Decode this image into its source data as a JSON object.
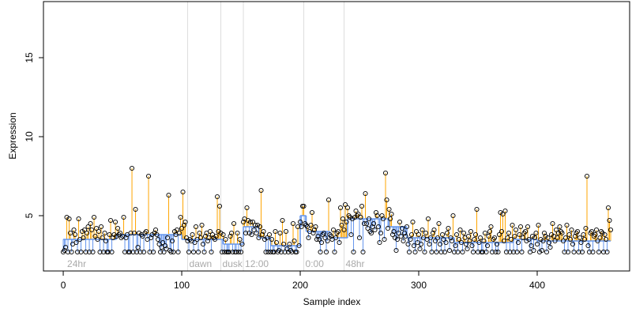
{
  "chart_data": {
    "type": "stem-scatter",
    "xlabel": "Sample index",
    "ylabel": "Expression",
    "xlim": [
      -16.7,
      478
    ],
    "xticks": [
      0,
      100,
      200,
      300,
      400
    ],
    "ylim": [
      1.5,
      18.55
    ],
    "yticks": [
      5,
      10,
      15
    ],
    "above_color": "#ffa500",
    "below_color": "#6495ed",
    "fit_color": "#6495ed",
    "annotations": [
      {
        "label": "24hr",
        "x": 2,
        "line": false
      },
      {
        "label": "dawn",
        "x": 105,
        "line": true
      },
      {
        "label": "dusk",
        "x": 133,
        "line": true
      },
      {
        "label": "12:00",
        "x": 152,
        "line": true
      },
      {
        "label": "0:00",
        "x": 203,
        "line": true
      },
      {
        "label": "48hr",
        "x": 237,
        "line": true
      }
    ],
    "fit": [
      {
        "x": [
          0,
          45
        ],
        "value": 3.5
      },
      {
        "x": [
          45,
          100
        ],
        "value": 3.8
      },
      {
        "x": [
          100,
          135
        ],
        "value": 3.5
      },
      {
        "x": [
          135,
          152
        ],
        "value": 3.2
      },
      {
        "x": [
          152,
          165
        ],
        "value": 4.3
      },
      {
        "x": [
          165,
          175
        ],
        "value": 3.6
      },
      {
        "x": [
          175,
          200
        ],
        "value": 3.1
      },
      {
        "x": [
          200,
          205
        ],
        "value": 5.0
      },
      {
        "x": [
          205,
          225
        ],
        "value": 4.0
      },
      {
        "x": [
          225,
          240
        ],
        "value": 3.6
      },
      {
        "x": [
          240,
          275
        ],
        "value": 4.8
      },
      {
        "x": [
          275,
          290
        ],
        "value": 4.3
      },
      {
        "x": [
          290,
          330
        ],
        "value": 3.6
      },
      {
        "x": [
          330,
          380
        ],
        "value": 3.3
      },
      {
        "x": [
          380,
          400
        ],
        "value": 3.5
      },
      {
        "x": [
          400,
          462
        ],
        "value": 3.4
      }
    ],
    "values": [
      2.7,
      2.8,
      3.0,
      4.9,
      2.7,
      4.8,
      3.9,
      2.7,
      3.2,
      4.1,
      3.8,
      3.3,
      2.7,
      4.8,
      3.5,
      2.7,
      4.0,
      3.6,
      4.1,
      2.7,
      3.9,
      4.3,
      2.7,
      4.5,
      4.1,
      2.7,
      4.9,
      3.7,
      4.2,
      3.5,
      4.0,
      2.7,
      4.3,
      3.6,
      2.7,
      3.9,
      3.4,
      2.7,
      2.7,
      3.8,
      4.7,
      2.7,
      3.6,
      3.8,
      4.6,
      3.7,
      4.2,
      3.8,
      3.9,
      3.6,
      3.7,
      4.9,
      2.7,
      3.6,
      3.8,
      2.7,
      2.7,
      3.9,
      8.0,
      2.7,
      3.9,
      5.4,
      2.7,
      3.0,
      3.9,
      2.7,
      3.8,
      3.7,
      2.7,
      3.9,
      4.0,
      3.5,
      7.5,
      2.7,
      3.6,
      3.8,
      2.7,
      3.9,
      4.1,
      3.8,
      3.5,
      3.2,
      2.7,
      3.0,
      3.3,
      2.7,
      3.1,
      2.9,
      3.6,
      6.3,
      2.8,
      2.7,
      3.4,
      2.7,
      4.0,
      3.8,
      4.1,
      2.7,
      3.9,
      4.9,
      4.2,
      6.5,
      4.4,
      4.6,
      3.6,
      3.4,
      2.7,
      3.5,
      3.4,
      3.8,
      2.7,
      3.3,
      4.3,
      3.5,
      2.7,
      3.9,
      3.6,
      4.4,
      3.2,
      2.7,
      3.7,
      3.9,
      3.4,
      3.6,
      4.0,
      2.7,
      3.8,
      3.6,
      3.5,
      3.7,
      6.2,
      4.0,
      5.6,
      3.9,
      2.7,
      3.8,
      2.7,
      3.5,
      2.7,
      2.7,
      2.7,
      3.7,
      3.9,
      2.7,
      4.5,
      2.7,
      2.7,
      3.9,
      2.7,
      3.5,
      2.7,
      3.2,
      4.6,
      4.8,
      3.9,
      5.5,
      4.7,
      3.9,
      4.6,
      3.8,
      4.6,
      4.1,
      4.4,
      3.9,
      4.4,
      3.6,
      4.3,
      6.6,
      3.8,
      4.0,
      3.5,
      2.7,
      3.6,
      2.7,
      3.8,
      2.7,
      3.5,
      2.7,
      2.7,
      4.0,
      3.3,
      2.7,
      2.8,
      3.9,
      2.7,
      4.7,
      3.2,
      2.7,
      4.0,
      2.9,
      2.7,
      3.2,
      2.8,
      2.7,
      4.5,
      3.4,
      2.7,
      2.7,
      4.3,
      3.1,
      4.6,
      4.3,
      5.6,
      5.6,
      4.5,
      4.4,
      4.3,
      3.6,
      4.0,
      4.4,
      5.2,
      3.9,
      4.1,
      4.3,
      3.5,
      3.7,
      3.5,
      2.7,
      3.3,
      3.8,
      3.9,
      3.6,
      2.7,
      3.4,
      6.0,
      3.8,
      3.7,
      3.5,
      4.1,
      2.7,
      3.6,
      3.9,
      4.0,
      3.3,
      5.5,
      4.4,
      4.8,
      4.1,
      5.7,
      4.6,
      5.5,
      5.0,
      4.9,
      3.8,
      4.8,
      2.7,
      4.9,
      5.3,
      5.0,
      5.1,
      3.6,
      4.9,
      5.6,
      2.7,
      4.5,
      6.4,
      4.5,
      4.2,
      4.8,
      4.0,
      3.9,
      4.3,
      4.5,
      4.1,
      5.2,
      5.0,
      4.3,
      3.3,
      3.9,
      5.0,
      4.8,
      3.5,
      7.7,
      6.0,
      4.2,
      5.4,
      4.8,
      5.1,
      3.8,
      4.0,
      3.6,
      2.8,
      3.5,
      3.9,
      4.6,
      3.7,
      4.2,
      3.4,
      3.9,
      3.7,
      4.3,
      3.2,
      2.7,
      3.5,
      3.8,
      4.6,
      3.1,
      2.7,
      4.0,
      3.3,
      3.8,
      2.9,
      3.2,
      4.1,
      3.6,
      2.7,
      3.9,
      3.5,
      4.8,
      3.2,
      3.6,
      2.7,
      3.9,
      4.1,
      3.4,
      2.7,
      3.6,
      4.5,
      3.2,
      2.7,
      3.8,
      3.5,
      2.7,
      3.3,
      3.9,
      4.2,
      2.8,
      3.6,
      3.4,
      5.0,
      2.7,
      3.1,
      3.8,
      2.7,
      3.5,
      4.1,
      3.3,
      2.7,
      3.9,
      3.6,
      3.2,
      2.9,
      3.7,
      3.4,
      4.0,
      3.1,
      2.7,
      3.5,
      3.8,
      5.4,
      2.7,
      3.3,
      3.6,
      2.7,
      2.7,
      3.4,
      3.9,
      2.7,
      3.1,
      3.7,
      4.0,
      4.3,
      2.7,
      3.5,
      3.6,
      2.7,
      3.2,
      2.7,
      3.8,
      5.2,
      4.0,
      5.1,
      3.4,
      5.3,
      2.7,
      3.6,
      3.9,
      2.7,
      3.5,
      4.4,
      2.7,
      3.7,
      4.1,
      2.7,
      3.3,
      3.8,
      4.3,
      2.7,
      3.6,
      3.9,
      4.0,
      3.4,
      4.3,
      3.5,
      2.7,
      3.1,
      3.7,
      2.8,
      3.6,
      3.9,
      3.2,
      4.4,
      2.7,
      3.5,
      2.8,
      3.4,
      3.9,
      3.7,
      2.7,
      3.6,
      3.3,
      3.0,
      3.8,
      4.5,
      3.7,
      3.4,
      4.1,
      3.6,
      3.9,
      4.3,
      4.0,
      3.9,
      3.4,
      2.7,
      3.6,
      4.4,
      2.7,
      3.8,
      3.5,
      4.1,
      3.2,
      2.7,
      3.7,
      3.9,
      4.0,
      2.7,
      3.6,
      3.3,
      2.7,
      3.8,
      3.5,
      4.2,
      7.5,
      3.1,
      2.7,
      3.9,
      4.0,
      2.7,
      3.7,
      3.8,
      4.1,
      3.4,
      2.7,
      3.6,
      4.0,
      3.9,
      2.7,
      3.8,
      3.5,
      2.7,
      5.5,
      4.7,
      4.1
    ]
  }
}
